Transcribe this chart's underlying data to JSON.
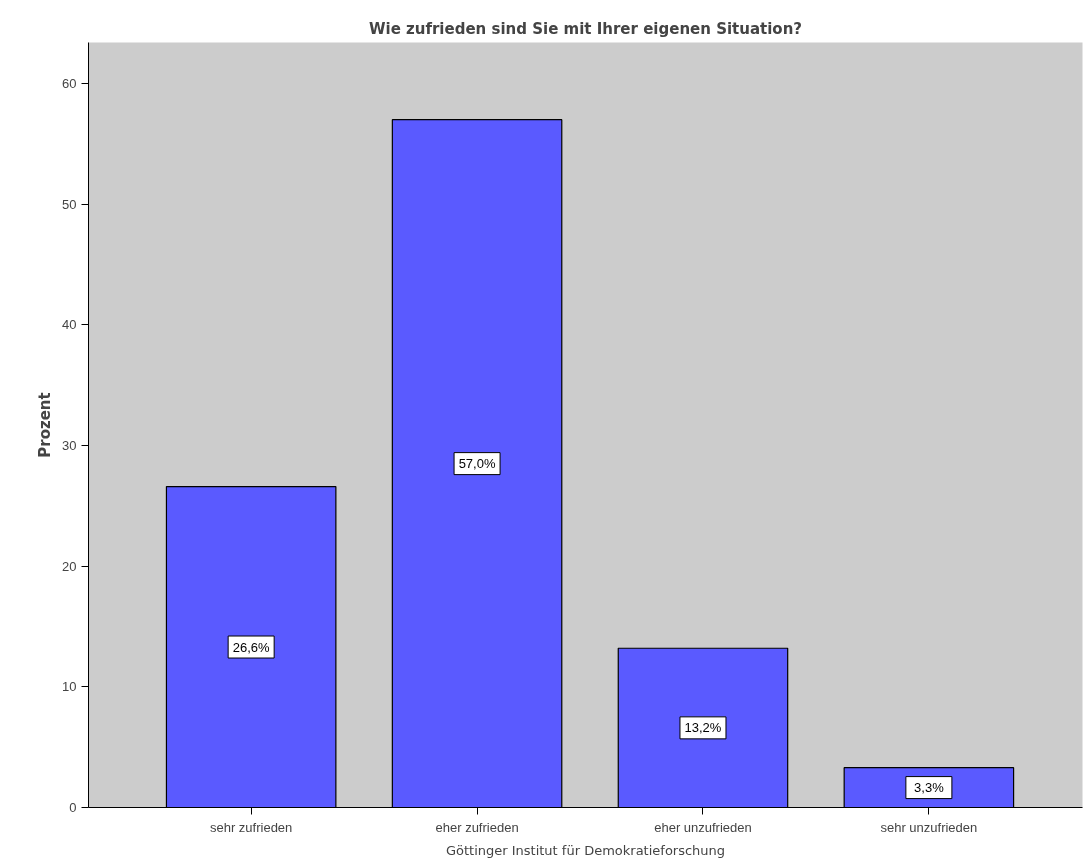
{
  "chart_data": {
    "type": "bar",
    "title": "Wie zufrieden sind Sie mit Ihrer eigenen Situation?",
    "xlabel": "Göttinger Institut für Demokratieforschung",
    "ylabel": "Prozent",
    "categories": [
      "sehr zufrieden",
      "eher zufrieden",
      "eher unzufrieden",
      "sehr unzufrieden"
    ],
    "values": [
      26.6,
      57.0,
      13.2,
      3.3
    ],
    "value_labels": [
      "26,6%",
      "57,0%",
      "13,2%",
      "3,3%"
    ],
    "color": "#5a5aff",
    "ylim": [
      0,
      63.4
    ],
    "yticks": [
      0,
      10,
      20,
      30,
      40,
      50,
      60
    ],
    "grid": false
  }
}
